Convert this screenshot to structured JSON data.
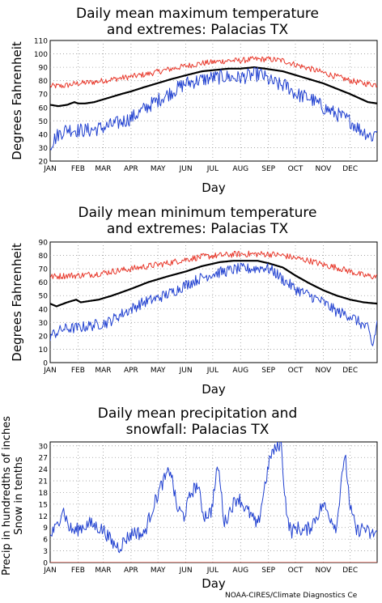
{
  "credit": "NOAA-CIRES/Climate Diagnostics Ce",
  "chart_data": [
    {
      "type": "line",
      "title": "Daily mean maximum temperature and extremes: Palacias TX",
      "title_lines": [
        "Daily mean maximum temperature",
        "and extremes: Palacias TX"
      ],
      "xlabel": "Day",
      "ylabel": "Degrees Fahrenheit",
      "x_tick_labels": [
        "JAN",
        "FEB",
        "MAR",
        "APR",
        "MAY",
        "JUN",
        "JUL",
        "AUG",
        "SEP",
        "OCT",
        "NOV",
        "DEC"
      ],
      "xlim": [
        1,
        365
      ],
      "ylim": [
        20,
        110
      ],
      "yticks": [
        20,
        30,
        40,
        50,
        60,
        70,
        80,
        90,
        100,
        110
      ],
      "grid": true,
      "series": [
        {
          "role": "record_high",
          "color": "#e8392c",
          "width": 1,
          "x": [
            1,
            15,
            32,
            50,
            70,
            91,
            110,
            130,
            152,
            170,
            185,
            200,
            213,
            228,
            244,
            260,
            274,
            290,
            305,
            320,
            335,
            350,
            365
          ],
          "y": [
            76,
            76,
            78,
            79,
            81,
            83,
            85,
            88,
            91,
            93,
            94,
            95,
            95,
            96,
            96,
            95,
            92,
            89,
            86,
            83,
            80,
            78,
            77
          ],
          "noise": 2.2
        },
        {
          "role": "mean",
          "color": "#000000",
          "width": 2.2,
          "x": [
            1,
            10,
            20,
            28,
            32,
            40,
            50,
            60,
            70,
            80,
            91,
            105,
            120,
            135,
            152,
            170,
            185,
            200,
            213,
            228,
            240,
            250,
            260,
            270,
            280,
            290,
            305,
            320,
            335,
            345,
            355,
            365
          ],
          "y": [
            62,
            61,
            62,
            64,
            63,
            63,
            64,
            66,
            68,
            70,
            72,
            75,
            78,
            81,
            84,
            87,
            88,
            89,
            89,
            90,
            89,
            88,
            87,
            85,
            83,
            81,
            78,
            74,
            70,
            67,
            64,
            63
          ],
          "noise": 0
        },
        {
          "role": "record_low",
          "color": "#2040d0",
          "width": 1,
          "x": [
            1,
            10,
            20,
            32,
            45,
            60,
            75,
            91,
            100,
            110,
            120,
            135,
            152,
            165,
            180,
            195,
            210,
            225,
            235,
            245,
            255,
            265,
            274,
            290,
            305,
            320,
            335,
            345,
            355,
            360,
            365
          ],
          "y": [
            32,
            40,
            44,
            43,
            43,
            45,
            48,
            52,
            56,
            61,
            65,
            71,
            78,
            80,
            82,
            83,
            82,
            84,
            85,
            80,
            77,
            76,
            70,
            67,
            60,
            55,
            50,
            44,
            40,
            38,
            45
          ],
          "noise": 5.5
        }
      ]
    },
    {
      "type": "line",
      "title": "Daily mean minimum temperature and extremes: Palacias TX",
      "title_lines": [
        "Daily mean minimum temperature",
        "and extremes: Palacias TX"
      ],
      "xlabel": "Day",
      "ylabel": "Degrees Fahrenheit",
      "x_tick_labels": [
        "JAN",
        "FEB",
        "MAR",
        "APR",
        "MAY",
        "JUN",
        "JUL",
        "AUG",
        "SEP",
        "OCT",
        "NOV",
        "DEC"
      ],
      "xlim": [
        1,
        365
      ],
      "ylim": [
        0,
        90
      ],
      "yticks": [
        0,
        10,
        20,
        30,
        40,
        50,
        60,
        70,
        80,
        90
      ],
      "grid": true,
      "series": [
        {
          "role": "record_high",
          "color": "#e8392c",
          "width": 1,
          "x": [
            1,
            20,
            32,
            50,
            70,
            91,
            110,
            130,
            152,
            170,
            190,
            210,
            228,
            245,
            260,
            274,
            290,
            305,
            320,
            335,
            350,
            365
          ],
          "y": [
            64,
            65,
            65,
            66,
            68,
            70,
            72,
            74,
            77,
            79,
            80,
            81,
            81,
            81,
            80,
            78,
            76,
            73,
            71,
            68,
            65,
            64
          ],
          "noise": 2.4
        },
        {
          "role": "mean",
          "color": "#000000",
          "width": 2.2,
          "x": [
            1,
            8,
            20,
            30,
            35,
            45,
            55,
            70,
            91,
            110,
            130,
            152,
            170,
            190,
            205,
            220,
            232,
            245,
            260,
            274,
            290,
            305,
            320,
            335,
            350,
            365
          ],
          "y": [
            44,
            42,
            45,
            47,
            45,
            46,
            47,
            50,
            55,
            60,
            64,
            68,
            72,
            75,
            76,
            76,
            76,
            74,
            71,
            65,
            59,
            54,
            50,
            47,
            45,
            44
          ],
          "noise": 0
        },
        {
          "role": "record_low",
          "color": "#2040d0",
          "width": 1,
          "x": [
            1,
            15,
            32,
            50,
            65,
            80,
            91,
            105,
            120,
            135,
            152,
            165,
            180,
            195,
            210,
            225,
            240,
            250,
            260,
            274,
            290,
            305,
            320,
            335,
            345,
            355,
            360,
            365
          ],
          "y": [
            20,
            25,
            26,
            28,
            30,
            36,
            40,
            45,
            48,
            52,
            58,
            62,
            66,
            68,
            70,
            70,
            71,
            68,
            62,
            55,
            50,
            45,
            38,
            35,
            30,
            25,
            12,
            30
          ],
          "noise": 4.2
        }
      ]
    },
    {
      "type": "line",
      "title": "Daily mean precipitation and snowfall: Palacias TX",
      "title_lines": [
        "Daily mean precipitation and",
        "snowfall: Palacias TX"
      ],
      "xlabel": "Day",
      "ylabel": "Precip in hundredths of inches Snow in tenths",
      "ylabel_lines": [
        "Precip in hundredths of inches",
        "Snow in tenths"
      ],
      "x_tick_labels": [
        "JAN",
        "FEB",
        "MAR",
        "APR",
        "MAY",
        "JUN",
        "JUL",
        "AUG",
        "SEP",
        "OCT",
        "NOV",
        "DEC"
      ],
      "xlim": [
        1,
        365
      ],
      "ylim": [
        0,
        31
      ],
      "yticks": [
        0,
        3,
        6,
        9,
        12,
        15,
        18,
        21,
        24,
        27,
        30
      ],
      "grid": true,
      "series": [
        {
          "role": "precipitation",
          "color": "#2040d0",
          "width": 1,
          "x": [
            1,
            8,
            15,
            22,
            28,
            35,
            45,
            55,
            62,
            70,
            78,
            85,
            95,
            105,
            115,
            125,
            135,
            142,
            150,
            158,
            165,
            172,
            180,
            188,
            195,
            202,
            210,
            218,
            225,
            232,
            240,
            247,
            252,
            258,
            262,
            266,
            270,
            276,
            283,
            290,
            298,
            305,
            312,
            320,
            326,
            330,
            335,
            342,
            350,
            358,
            365
          ],
          "y": [
            7,
            9,
            14,
            9,
            8,
            9,
            10,
            9,
            8,
            5,
            4,
            6,
            8,
            7,
            14,
            20,
            24,
            14,
            12,
            18,
            20,
            12,
            13,
            25,
            10,
            14,
            17,
            14,
            12,
            9,
            20,
            28,
            29,
            31,
            18,
            10,
            8,
            9,
            8,
            9,
            12,
            15,
            12,
            9,
            24,
            26,
            14,
            8,
            9,
            7,
            8
          ],
          "noise": 1.8
        },
        {
          "role": "snowfall",
          "color": "#d8301f",
          "width": 1,
          "x": [
            1,
            365
          ],
          "y": [
            0,
            0
          ],
          "noise": 0
        }
      ]
    }
  ]
}
